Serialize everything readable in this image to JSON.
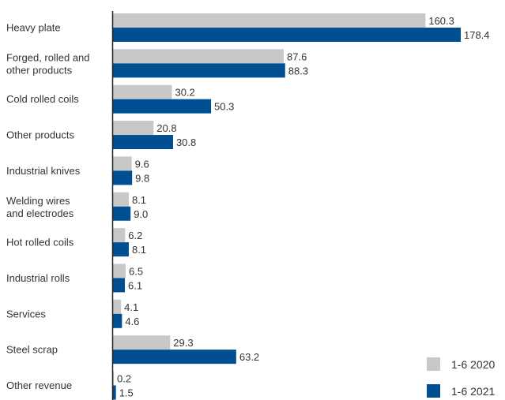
{
  "chart_data": {
    "type": "bar",
    "orientation": "horizontal",
    "categories": [
      [
        "Heavy plate"
      ],
      [
        "Forged, rolled and",
        "other products"
      ],
      [
        "Cold rolled coils"
      ],
      [
        "Other products"
      ],
      [
        "Industrial knives"
      ],
      [
        "Welding wires",
        "and electrodes"
      ],
      [
        "Hot rolled coils"
      ],
      [
        "Industrial rolls"
      ],
      [
        "Services"
      ],
      [
        "Steel scrap"
      ],
      [
        "Other revenue"
      ]
    ],
    "series": [
      {
        "name": "1-6 2020",
        "color": "#c8c8c8",
        "values": [
          160.3,
          87.6,
          30.2,
          20.8,
          9.6,
          8.1,
          6.2,
          6.5,
          4.1,
          29.3,
          0.2
        ],
        "labels": [
          "160.3",
          "87.6",
          "30.2",
          "20.8",
          "9.6",
          "8.1",
          "6.2",
          "6.5",
          "4.1",
          "29.3",
          "0.2"
        ]
      },
      {
        "name": "1-6 2021",
        "color": "#004f93",
        "values": [
          178.4,
          88.3,
          50.3,
          30.8,
          9.8,
          9.0,
          8.1,
          6.1,
          4.6,
          63.2,
          1.5
        ],
        "labels": [
          "178.4",
          "88.3",
          "50.3",
          "30.8",
          "9.8",
          "9.0",
          "8.1",
          "6.1",
          "4.6",
          "63.2",
          "1.5"
        ]
      }
    ],
    "xlim": [
      0,
      178.4
    ],
    "grid": false,
    "legend_position": "bottom-right"
  }
}
